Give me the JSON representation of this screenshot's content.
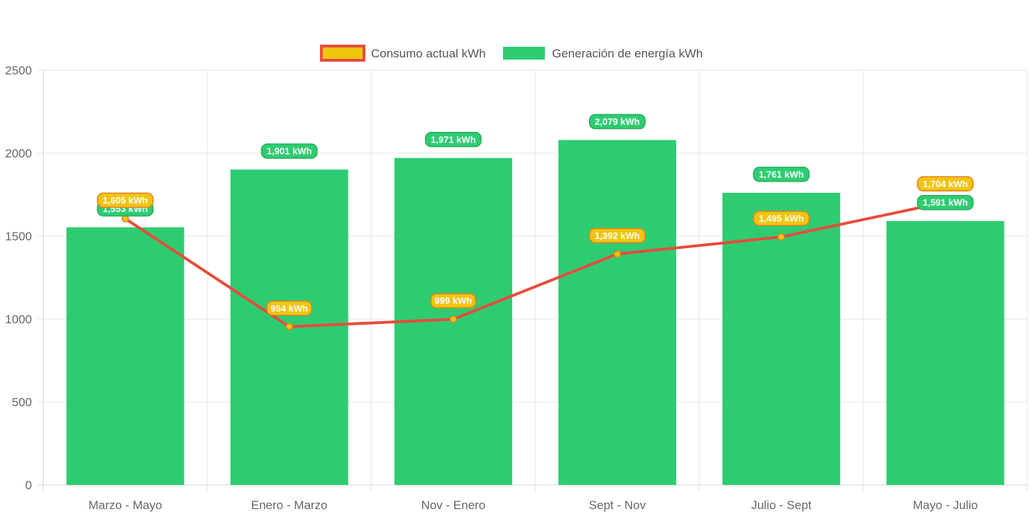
{
  "chart_data": {
    "type": "bar",
    "categories": [
      "Marzo - Mayo",
      "Enero - Marzo",
      "Nov - Enero",
      "Sept - Nov",
      "Julio - Sept",
      "Mayo - Julio"
    ],
    "ylim": [
      0,
      2500
    ],
    "yticks": [
      0,
      500,
      1000,
      1500,
      2000,
      2500
    ],
    "grid": true,
    "legend_position": "top-center",
    "series": [
      {
        "name": "Consumo actual kWh",
        "render": "line",
        "values": [
          1605,
          954,
          999,
          1392,
          1495,
          1704
        ],
        "labels": [
          "1,605 kWh",
          "954 kWh",
          "999 kWh",
          "1,392 kWh",
          "1,495 kWh",
          "1,704 kWh"
        ],
        "color": "#e74c3c",
        "fill_color": "#f1c40f",
        "label_bg": "#f1c40f",
        "label_border": "#e67e22"
      },
      {
        "name": "Generación de energía kWh",
        "render": "bar",
        "values": [
          1553,
          1901,
          1971,
          2079,
          1761,
          1591
        ],
        "labels": [
          "1,553 kWh",
          "1,901 kWh",
          "1,971 kWh",
          "2,079 kWh",
          "1,761 kWh",
          "1,591 kWh"
        ],
        "color": "#2ecc71",
        "label_bg": "#2ecc71",
        "label_border": "#27ae60"
      }
    ]
  }
}
